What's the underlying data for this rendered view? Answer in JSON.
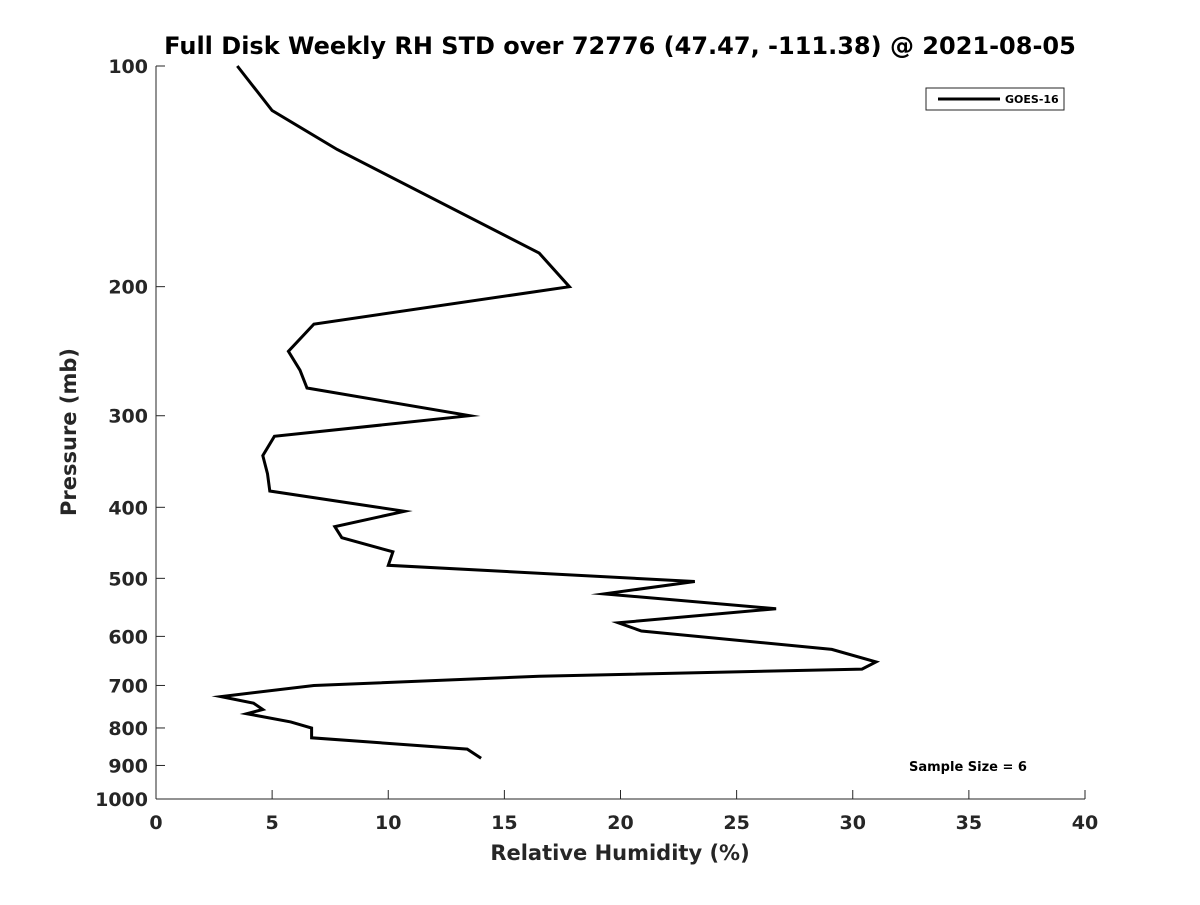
{
  "chart_data": {
    "type": "line",
    "title": "Full Disk Weekly RH STD over 72776 (47.47, -111.38) @ 2021-08-05",
    "xlabel": "Relative Humidity (%)",
    "ylabel": "Pressure (mb)",
    "xlim": [
      0,
      40
    ],
    "ylim": [
      100,
      1000
    ],
    "yscale": "log",
    "yreversed": true,
    "x_ticks": [
      0,
      5,
      10,
      15,
      20,
      25,
      30,
      35,
      40
    ],
    "x_tick_labels": [
      "0",
      "5",
      "10",
      "15",
      "20",
      "25",
      "30",
      "35",
      "40"
    ],
    "y_ticks": [
      100,
      200,
      300,
      400,
      500,
      600,
      700,
      800,
      900,
      1000
    ],
    "y_tick_labels": [
      "100",
      "200",
      "300",
      "400",
      "500",
      "600",
      "700",
      "800",
      "900",
      "1000"
    ],
    "grid": false,
    "legend_position": "top-right",
    "series": [
      {
        "name": "GOES-16",
        "color": "#000000",
        "x": [
          3.5,
          5.0,
          7.8,
          16.5,
          17.8,
          6.8,
          5.7,
          6.2,
          6.5,
          13.5,
          5.1,
          4.6,
          4.8,
          4.9,
          10.7,
          7.7,
          8.0,
          10.2,
          10.1,
          10.0,
          23.2,
          19.3,
          26.7,
          19.9,
          20.9,
          29.1,
          31.0,
          30.4,
          16.5,
          6.8,
          2.8,
          4.2,
          4.6,
          3.9,
          5.8,
          6.7,
          6.7,
          13.4,
          14.0
        ],
        "y": [
          100,
          115,
          130,
          180,
          200,
          225,
          245,
          260,
          275,
          300,
          320,
          340,
          360,
          380,
          405,
          425,
          440,
          460,
          470,
          480,
          505,
          525,
          550,
          575,
          590,
          625,
          650,
          665,
          680,
          700,
          725,
          740,
          755,
          765,
          785,
          800,
          825,
          855,
          880
        ]
      }
    ],
    "annotations": [
      {
        "text": "Sample Size = 6",
        "position": "bottom-right"
      }
    ]
  }
}
